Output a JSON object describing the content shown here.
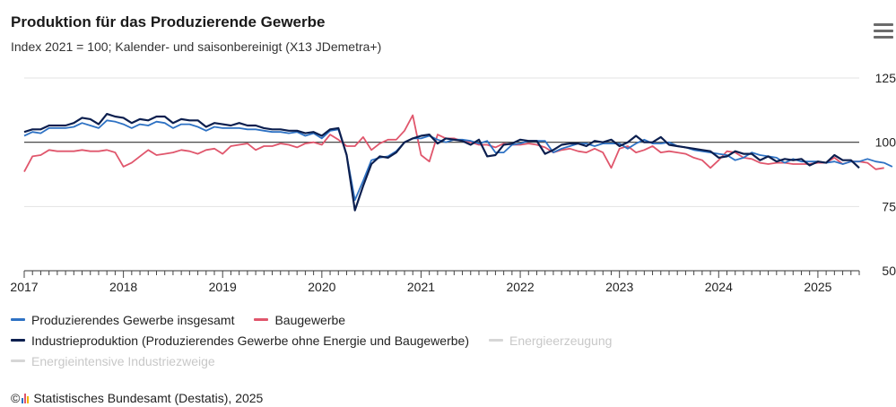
{
  "header": {
    "title": "Produktion für das Produzierende Gewerbe",
    "subtitle": "Index 2021 = 100; Kalender- und saisonbereinigt (X13 JDemetra+)",
    "menu_icon": "hamburger-menu-icon"
  },
  "legend": [
    {
      "label": "Produzierendes Gewerbe insgesamt",
      "color": "#2e72c4",
      "visible": true
    },
    {
      "label": "Baugewerbe",
      "color": "#e0566c",
      "visible": true
    },
    {
      "label": "Industrieproduktion (Produzierendes Gewerbe ohne Energie und Baugewerbe)",
      "color": "#0c1f4f",
      "visible": true
    },
    {
      "label": "Energieerzeugung",
      "color": "#d6d6d6",
      "visible": false
    },
    {
      "label": "Energieintensive Industriezweige",
      "color": "#d6d6d6",
      "visible": false
    }
  ],
  "source": {
    "copyright": "©",
    "text": "Statistisches Bundesamt (Destatis), 2025",
    "logo_colors": [
      "#2e72c4",
      "#e0566c",
      "#f2b400"
    ]
  },
  "chart_data": {
    "type": "line",
    "y_ticks": [
      50,
      75,
      100,
      125
    ],
    "ylim": [
      50,
      125
    ],
    "x_ticks": [
      "2017",
      "2018",
      "2019",
      "2020",
      "2021",
      "2022",
      "2023",
      "2024",
      "2025"
    ],
    "x_start": "2017-01",
    "x_end": "2025-06",
    "reference_line": 100,
    "grid": true,
    "series": [
      {
        "name": "Produzierendes Gewerbe insgesamt",
        "color": "#2e72c4",
        "values": [
          102.5,
          104,
          103.5,
          105.5,
          105.5,
          105.5,
          106,
          107.5,
          106.5,
          105.5,
          108.5,
          108,
          107,
          105.5,
          107,
          106.5,
          108,
          107.5,
          105.5,
          107,
          107,
          106,
          104.5,
          106,
          105.5,
          105.5,
          105.5,
          105,
          105,
          104.5,
          104,
          104,
          103.5,
          104,
          102.5,
          103.5,
          101.5,
          104.5,
          105,
          95,
          77.5,
          85,
          93,
          94,
          94.5,
          96.5,
          100,
          101.5,
          101.5,
          102.5,
          101,
          100,
          101,
          101,
          100.5,
          99.5,
          100.5,
          96,
          96,
          99,
          99.5,
          100.5,
          100.5,
          100.5,
          96,
          97.5,
          98.5,
          99.5,
          99.5,
          98.5,
          99.5,
          99.5,
          99.5,
          97.5,
          99.5,
          101,
          99.5,
          99.5,
          100,
          98.5,
          98,
          97,
          96.5,
          96,
          95.5,
          95,
          93,
          94,
          96,
          95,
          94.5,
          94,
          92,
          93.5,
          92.5,
          92.5,
          92.5,
          92,
          92.5,
          91.5,
          92.5,
          92.5,
          93.5,
          92.5,
          92,
          90.5
        ]
      },
      {
        "name": "Baugewerbe",
        "color": "#e0566c",
        "values": [
          88.5,
          94.5,
          95,
          97,
          96.5,
          96.5,
          96.5,
          97,
          96.5,
          96.5,
          97,
          96,
          90.5,
          92,
          94.5,
          97,
          95,
          95.5,
          96,
          97,
          96.5,
          95.5,
          97,
          97.5,
          95.5,
          98.5,
          99,
          99.5,
          97,
          98.5,
          98.5,
          99.5,
          99,
          98,
          99.5,
          100,
          99,
          103,
          101,
          98.5,
          98.5,
          102,
          97,
          99.5,
          101,
          101,
          104.5,
          110.5,
          95,
          92.5,
          103,
          101.5,
          101.5,
          100.5,
          100,
          99,
          99,
          98,
          99.5,
          99,
          99,
          99.5,
          99,
          98,
          96,
          97,
          97.5,
          96.5,
          96,
          97.5,
          96,
          90,
          97.5,
          98.5,
          96,
          97,
          98.5,
          96,
          96.5,
          96,
          95.5,
          94,
          93,
          90,
          93,
          96.5,
          96,
          94,
          93.5,
          92,
          91.5,
          92,
          92,
          91.5,
          91.5,
          91.5,
          92,
          92,
          94,
          91.5,
          92.5,
          92.5,
          92,
          89.5,
          90
        ]
      },
      {
        "name": "Industrieproduktion (Produzierendes Gewerbe ohne Energie und Baugewerbe)",
        "color": "#0c1f4f",
        "values": [
          104,
          105,
          105,
          106.5,
          106.5,
          106.5,
          107.5,
          109.5,
          109,
          107,
          111,
          110,
          109.5,
          107.5,
          109,
          108.5,
          110,
          110,
          107.5,
          109,
          108.5,
          108.5,
          106,
          107.5,
          107,
          106.5,
          107.5,
          106.5,
          106.5,
          105.5,
          105,
          105,
          104.5,
          104.5,
          103.5,
          104,
          102.5,
          105,
          105.5,
          95,
          73.5,
          83,
          91.5,
          94.5,
          94,
          96,
          100,
          101.5,
          102.5,
          103,
          99.5,
          101.5,
          101,
          100.5,
          99,
          101,
          94.5,
          95,
          99,
          99.5,
          101,
          100.5,
          100.5,
          95.5,
          97,
          99,
          99.5,
          99.5,
          98.5,
          100.5,
          100,
          101,
          98.5,
          100,
          102.5,
          100,
          100,
          102,
          99,
          98.5,
          98,
          97.5,
          97,
          96.5,
          94,
          94.5,
          96.5,
          95.5,
          95.5,
          93,
          94.5,
          92.5,
          93.5,
          93,
          93.5,
          91,
          92.5,
          92,
          95,
          93,
          93,
          90
        ]
      }
    ]
  }
}
